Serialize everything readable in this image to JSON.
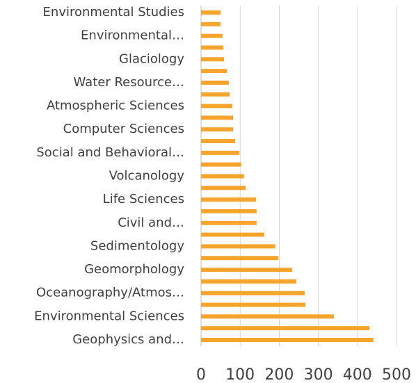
{
  "chart_data": {
    "type": "barh",
    "categories": [
      "Environmental Studies",
      null,
      "Environmental…",
      null,
      "Glaciology",
      null,
      "Water Resource…",
      null,
      "Atmospheric Sciences",
      null,
      "Computer Sciences",
      null,
      "Social and Behavioral…",
      null,
      "Volcanology",
      null,
      "Life Sciences",
      null,
      "Civil and…",
      null,
      "Sedimentology",
      null,
      "Geomorphology",
      null,
      "Oceanography/Atmos…",
      null,
      "Environmental Sciences",
      null,
      "Geophysics and…"
    ],
    "values": [
      50,
      50,
      55,
      57,
      59,
      66,
      71,
      73,
      80,
      82,
      82,
      87,
      98,
      103,
      110,
      114,
      141,
      142,
      142,
      162,
      190,
      198,
      233,
      244,
      265,
      267,
      340,
      431,
      441
    ],
    "color": "#f5a52c",
    "xlim": [
      0,
      500
    ],
    "xticks": [
      0,
      100,
      200,
      300,
      400,
      500
    ],
    "grid": true
  }
}
